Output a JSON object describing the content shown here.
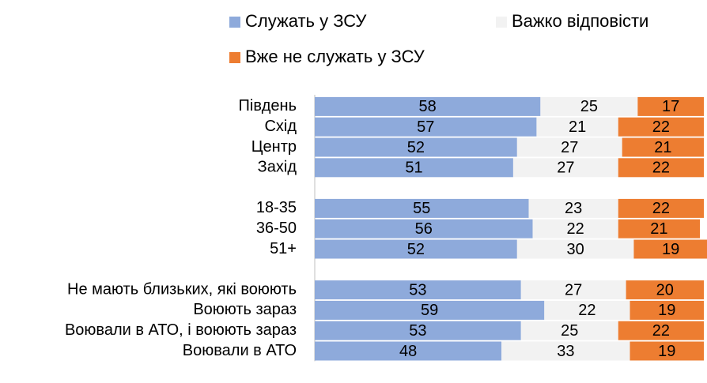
{
  "chart_data": {
    "type": "stacked_bar_horizontal",
    "categories": [
      "Південь",
      "Схід",
      "Центр",
      "Захід",
      null,
      "18-35",
      "36-50",
      "51+",
      null,
      "Не мають близьких, які воюють",
      "Воюють зараз",
      "Воювали в АТО, і воюють зараз",
      "Воювали в АТО"
    ],
    "series": [
      {
        "name": "Служать у ЗСУ",
        "color": "#8eaadb",
        "values": [
          58,
          57,
          52,
          51,
          null,
          55,
          56,
          52,
          null,
          53,
          59,
          53,
          48
        ]
      },
      {
        "name": "Важко відповісти",
        "color": "#f2f2f2",
        "values": [
          25,
          21,
          27,
          27,
          null,
          23,
          22,
          30,
          null,
          27,
          22,
          25,
          33
        ]
      },
      {
        "name": "Вже не служать у ЗСУ",
        "color": "#ed7d31",
        "values": [
          17,
          22,
          21,
          22,
          null,
          22,
          21,
          19,
          null,
          20,
          19,
          22,
          19
        ]
      }
    ],
    "xlim": [
      0,
      100
    ]
  }
}
